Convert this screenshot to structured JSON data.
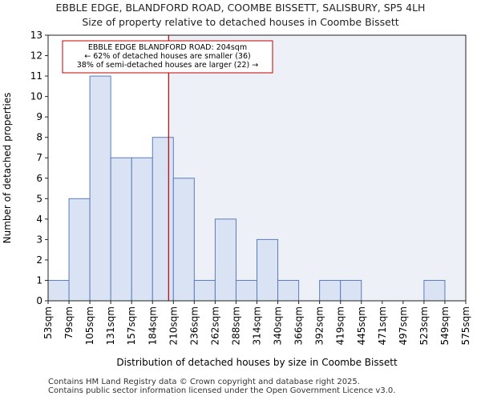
{
  "chart_data": {
    "type": "bar",
    "title": "EBBLE EDGE, BLANDFORD ROAD, COOMBE BISSETT, SALISBURY, SP5 4LH",
    "subtitle": "Size of property relative to detached houses in Coombe Bissett",
    "xlabel": "Distribution of detached houses by size in Coombe Bissett",
    "ylabel": "Number of detached properties",
    "bin_edges": [
      "53sqm",
      "79sqm",
      "105sqm",
      "131sqm",
      "157sqm",
      "184sqm",
      "210sqm",
      "236sqm",
      "262sqm",
      "288sqm",
      "314sqm",
      "340sqm",
      "366sqm",
      "392sqm",
      "419sqm",
      "445sqm",
      "471sqm",
      "497sqm",
      "523sqm",
      "549sqm",
      "575sqm"
    ],
    "values": [
      1,
      5,
      11,
      7,
      7,
      8,
      6,
      1,
      4,
      1,
      3,
      1,
      0,
      1,
      1,
      0,
      0,
      0,
      1,
      0
    ],
    "ylim": [
      0,
      13
    ],
    "yticks": [
      0,
      1,
      2,
      3,
      4,
      5,
      6,
      7,
      8,
      9,
      10,
      11,
      12,
      13
    ],
    "property_size_sqm": 204,
    "property_bin_position": 5.77,
    "annotation": {
      "line1": "EBBLE EDGE BLANDFORD ROAD: 204sqm",
      "line2": "← 62% of detached houses are smaller (36)",
      "line3": "38% of semi-detached houses are larger (22) →"
    },
    "colors": {
      "bar_fill": "#dae3f3",
      "bar_stroke": "#5b7bbd",
      "marker": "#c00000",
      "highlight_bg": "#eef0f8"
    }
  },
  "footer": {
    "line1": "Contains HM Land Registry data © Crown copyright and database right 2025.",
    "line2": "Contains public sector information licensed under the Open Government Licence v3.0."
  }
}
